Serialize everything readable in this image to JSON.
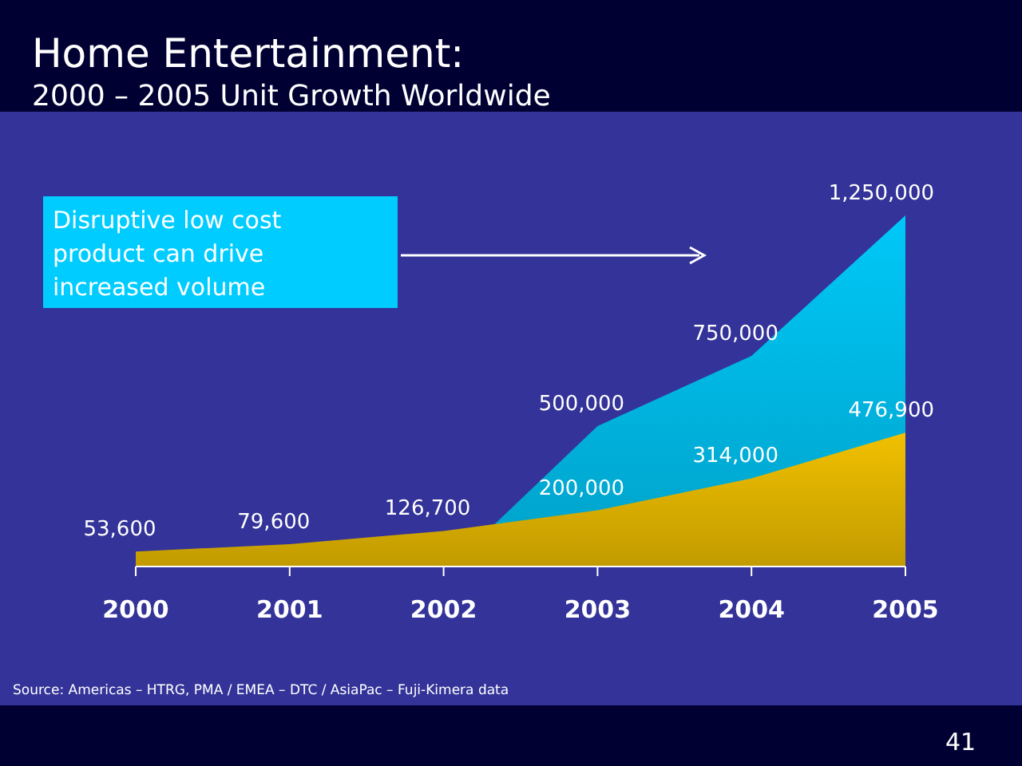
{
  "chart_data": {
    "type": "area",
    "title": "Home Entertainment:",
    "subtitle": "2000 – 2005 Unit Growth Worldwide",
    "xlim": [
      2000,
      2005
    ],
    "xticks": [
      2000,
      2001,
      2002,
      2003,
      2004,
      2005
    ],
    "series": [
      {
        "color": "#00c8f8",
        "x": [
          2002.33,
          2003,
          2004,
          2005
        ],
        "values": [
          150000,
          500000,
          750000,
          1250000
        ],
        "value_labels": [
          null,
          "500,000",
          "750,000",
          "1,250,000"
        ]
      },
      {
        "color": "#f0c000",
        "x": [
          2000,
          2001,
          2002,
          2003,
          2004,
          2005
        ],
        "values": [
          53600,
          79600,
          126700,
          200000,
          314000,
          476900
        ],
        "value_labels": [
          "53,600",
          "79,600",
          "126,700",
          "200,000",
          "314,000",
          "476,900"
        ]
      }
    ],
    "annotations": [
      "Disruptive low cost product can drive increased volume",
      "Source: Americas – HTRG, PMA / EMEA – DTC / AsiaPac – Fuji-Kimera data",
      "41"
    ]
  }
}
